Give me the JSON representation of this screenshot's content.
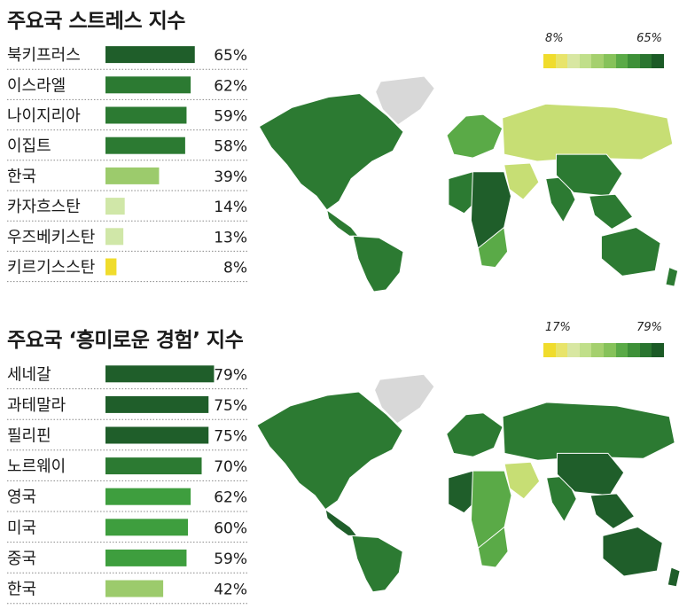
{
  "chart_data": [
    {
      "type": "bar",
      "title": "주요국 스트레스 지수",
      "categories": [
        "북키프러스",
        "이스라엘",
        "나이지리아",
        "이집트",
        "한국",
        "카자흐스탄",
        "우즈베키스탄",
        "키르기스스탄"
      ],
      "values": [
        65,
        62,
        59,
        58,
        39,
        14,
        13,
        8
      ],
      "value_labels": [
        "65%",
        "62%",
        "59%",
        "58%",
        "39%",
        "14%",
        "13%",
        "8%"
      ],
      "bar_colors": [
        "#1f5e2a",
        "#2c7a32",
        "#2c7a32",
        "#2c7a32",
        "#9ccb6c",
        "#d0e7a8",
        "#d0e7a8",
        "#f0dc2c"
      ],
      "legend": {
        "min_label": "8%",
        "max_label": "65%"
      },
      "grid": false
    },
    {
      "type": "bar",
      "title": "주요국 ‘흥미로운 경험’ 지수",
      "categories": [
        "세네갈",
        "과테말라",
        "필리핀",
        "노르웨이",
        "영국",
        "미국",
        "중국",
        "한국"
      ],
      "values": [
        79,
        75,
        75,
        70,
        62,
        60,
        59,
        42
      ],
      "value_labels": [
        "79%",
        "75%",
        "75%",
        "70%",
        "62%",
        "60%",
        "59%",
        "42%"
      ],
      "bar_colors": [
        "#1f5e2a",
        "#1f5e2a",
        "#1f5e2a",
        "#2c7a32",
        "#3e9e3e",
        "#3e9e3e",
        "#3e9e3e",
        "#9ccb6c"
      ],
      "legend": {
        "min_label": "17%",
        "max_label": "79%"
      },
      "grid": false
    }
  ],
  "legend_colors": [
    "#f0dc2c",
    "#e8e46a",
    "#d8e7a2",
    "#c0df8a",
    "#a5d06e",
    "#86c25a",
    "#5aaa47",
    "#3e9038",
    "#2a7530",
    "#1b5a26"
  ],
  "map_colors": {
    "ocean": "#ffffff",
    "no_data": "#d8d8d8",
    "dark": "#1f5e2a",
    "mid": "#2c7a32",
    "light": "#5aaa47",
    "pale": "#c7de74",
    "yellow": "#e8e46a"
  }
}
